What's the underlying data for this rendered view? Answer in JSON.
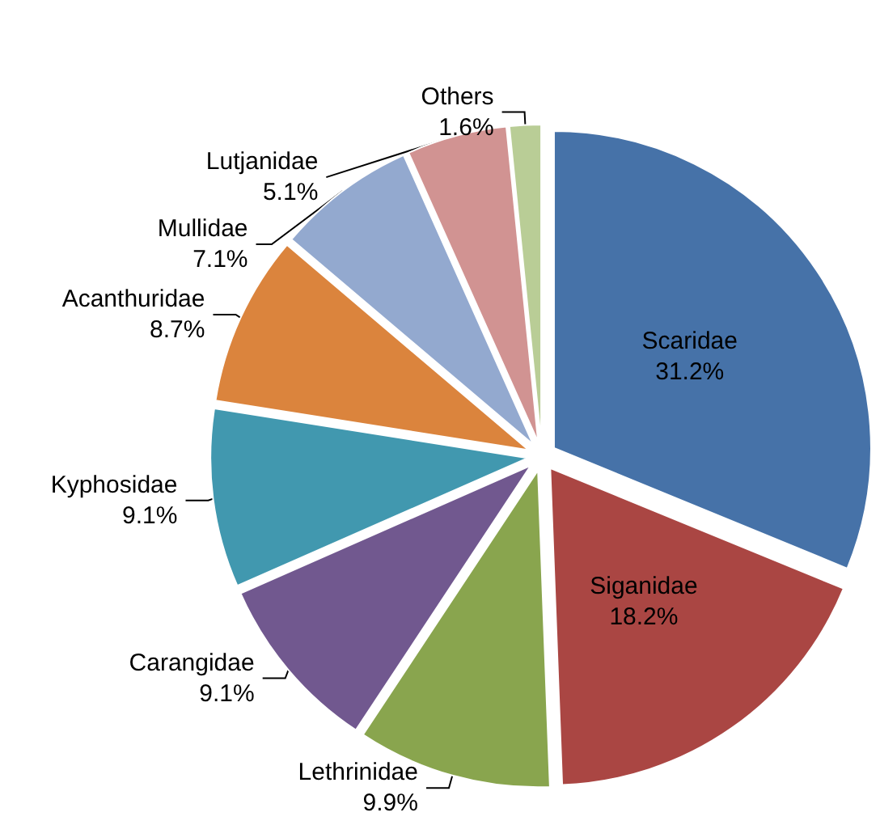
{
  "chart_data": {
    "type": "pie",
    "categories": [
      "Scaridae",
      "Siganidae",
      "Lethrinidae",
      "Carangidae",
      "Kyphosidae",
      "Acanthuridae",
      "Mullidae",
      "Lutjanidae",
      "Others"
    ],
    "values": [
      31.2,
      18.2,
      9.9,
      9.1,
      9.1,
      8.7,
      7.1,
      5.1,
      1.6
    ],
    "value_labels": [
      "31.2%",
      "18.2%",
      "9.9%",
      "9.1%",
      "9.1%",
      "8.7%",
      "7.1%",
      "5.1%",
      "1.6%"
    ],
    "colors": [
      "#4672a8",
      "#aa4643",
      "#89a54e",
      "#71588f",
      "#4198af",
      "#db843d",
      "#93a9cf",
      "#d19392",
      "#b9cd96"
    ],
    "legend": false
  }
}
